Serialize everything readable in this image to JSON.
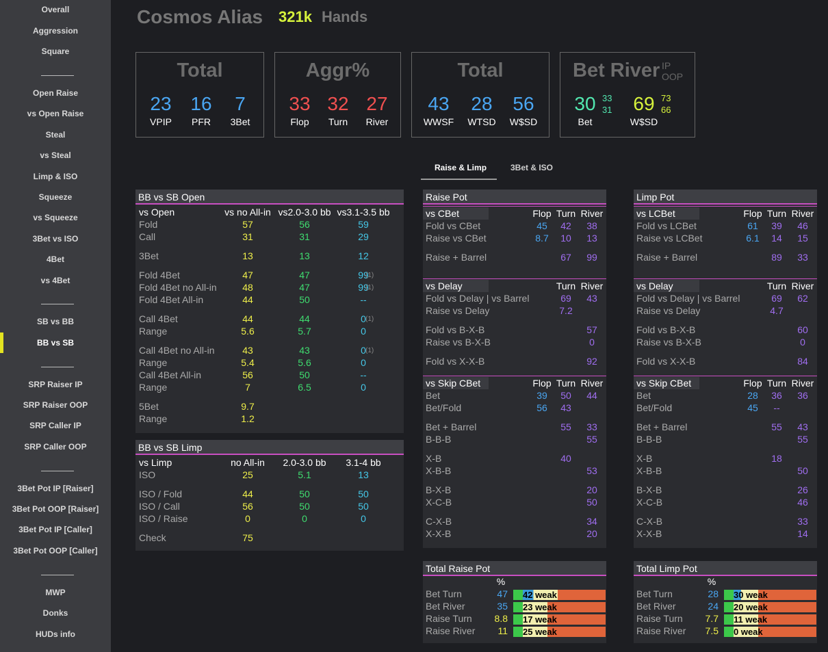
{
  "sidebar": {
    "items": [
      "Overall",
      "Aggression",
      "Square",
      "Open Raise",
      "vs Open Raise",
      "Steal",
      "vs Steal",
      "Limp & ISO",
      "Squeeze",
      "vs Squeeze",
      "3Bet vs ISO",
      "4Bet",
      "vs 4Bet",
      "SB vs BB",
      "BB vs SB",
      "SRP Raiser IP",
      "SRP Raiser OOP",
      "SRP Caller IP",
      "SRP Caller OOP",
      "3Bet Pot IP [Raiser]",
      "3Bet Pot OOP [Raiser]",
      "3Bet Pot IP [Caller]",
      "3Bet Pot OOP [Caller]",
      "MWP",
      "Donks",
      "HUDs info"
    ],
    "active": "BB vs SB"
  },
  "header": {
    "player": "Cosmos Alias",
    "hands_count": "321k",
    "hands_label": "Hands"
  },
  "cards": {
    "total1": {
      "title": "Total",
      "vpip": "23",
      "vpip_l": "VPIP",
      "pfr": "16",
      "pfr_l": "PFR",
      "tb": "7",
      "tb_l": "3Bet"
    },
    "aggr": {
      "title": "Aggr%",
      "flop": "33",
      "flop_l": "Flop",
      "turn": "32",
      "turn_l": "Turn",
      "river": "27",
      "river_l": "River"
    },
    "total2": {
      "title": "Total",
      "wwsf": "43",
      "wwsf_l": "WWSF",
      "wtsd": "28",
      "wtsd_l": "WTSD",
      "wsd": "56",
      "wsd_l": "W$SD"
    },
    "betriver": {
      "title": "Bet River",
      "ip": "IP",
      "oop": "OOP",
      "bet": "30",
      "bet_ip": "33",
      "bet_oop": "31",
      "bet_l": "Bet",
      "wsd": "69",
      "wsd_ip": "73",
      "wsd_oop": "66",
      "wsd_l": "W$SD"
    }
  },
  "tabs": [
    "Raise & Limp",
    "3Bet & ISO"
  ],
  "bbsb_open": {
    "title": "BB vs SB Open",
    "head": [
      "vs Open",
      "vs no All-in",
      "vs2.0-3.0 bb",
      "vs3.1-3.5 bb"
    ],
    "fold": [
      "Fold",
      "57",
      "56",
      "59"
    ],
    "call": [
      "Call",
      "31",
      "31",
      "29"
    ],
    "threebet": [
      "3Bet",
      "13",
      "13",
      "12"
    ],
    "f4": [
      "Fold 4Bet",
      "47",
      "47",
      "99",
      "(1)"
    ],
    "f4na": [
      "Fold 4Bet no All-in",
      "48",
      "47",
      "99",
      "(1)"
    ],
    "f4a": [
      "Fold 4Bet All-in",
      "44",
      "50",
      "--"
    ],
    "c4": [
      "Call 4Bet",
      "44",
      "44",
      "0",
      "(1)"
    ],
    "c4r": [
      "Range",
      "5.6",
      "5.7",
      "0"
    ],
    "c4na": [
      "Call 4Bet no All-in",
      "43",
      "43",
      "0",
      "(1)"
    ],
    "c4nar": [
      "Range",
      "5.4",
      "5.6",
      "0"
    ],
    "c4a": [
      "Call 4Bet All-in",
      "56",
      "50",
      "--"
    ],
    "c4ar": [
      "Range",
      "7",
      "6.5",
      "0"
    ],
    "b5": [
      "5Bet",
      "9.7"
    ],
    "b5r": [
      "Range",
      "1.2"
    ]
  },
  "bbsb_limp": {
    "title": "BB vs SB Limp",
    "head": [
      "vs Limp",
      "no All-in",
      "2.0-3.0 bb",
      "3.1-4 bb"
    ],
    "iso": [
      "ISO",
      "25",
      "5.1",
      "13"
    ],
    "isof": [
      "ISO / Fold",
      "44",
      "50",
      "50"
    ],
    "isoc": [
      "ISO / Call",
      "56",
      "50",
      "50"
    ],
    "isor": [
      "ISO / Raise",
      "0",
      "0",
      "0"
    ],
    "check": [
      "Check",
      "75"
    ]
  },
  "raise_pot": {
    "title": "Raise Pot",
    "cbet_head": [
      "vs CBet",
      "Flop",
      "Turn",
      "River"
    ],
    "fcb": [
      "Fold vs CBet",
      "45",
      "42",
      "38"
    ],
    "rcb": [
      "Raise vs CBet",
      "8.7",
      "10",
      "13"
    ],
    "rb": [
      "Raise + Barrel",
      "67",
      "99"
    ],
    "delay_head": [
      "vs Delay",
      "Turn",
      "River"
    ],
    "fd": [
      "Fold vs Delay | vs Barrel",
      "69",
      "43"
    ],
    "rd": [
      "Raise vs Delay",
      "7.2"
    ],
    "fbxb": [
      "Fold vs B-X-B",
      "57"
    ],
    "rbxb": [
      "Raise vs B-X-B",
      "0"
    ],
    "fxxb": [
      "Fold vs X-X-B",
      "92"
    ],
    "skip_head": [
      "vs Skip CBet",
      "Flop",
      "Turn",
      "River"
    ],
    "bet": [
      "Bet",
      "39",
      "50",
      "44"
    ],
    "betfold": [
      "Bet/Fold",
      "56",
      "43"
    ],
    "betbarrel": [
      "Bet + Barrel",
      "55",
      "33"
    ],
    "bbb": [
      "B-B-B",
      "55"
    ],
    "xb": [
      "X-B",
      "40"
    ],
    "xbb": [
      "X-B-B",
      "53"
    ],
    "bxb": [
      "B-X-B",
      "20"
    ],
    "xcxb": [
      "X-C-B",
      "50"
    ],
    "cxb": [
      "C-X-B",
      "34"
    ],
    "xxb": [
      "X-X-B",
      "20"
    ]
  },
  "limp_pot": {
    "title": "Limp Pot",
    "cbet_head": [
      "vs LCBet",
      "Flop",
      "Turn",
      "River"
    ],
    "fcb": [
      "Fold vs LCBet",
      "61",
      "39",
      "46"
    ],
    "rcb": [
      "Raise vs LCBet",
      "6.1",
      "14",
      "15"
    ],
    "rb": [
      "Raise + Barrel",
      "89",
      "33"
    ],
    "delay_head": [
      "vs Delay",
      "Turn",
      "River"
    ],
    "fd": [
      "Fold vs Delay | vs Barrel",
      "69",
      "62"
    ],
    "rd": [
      "Raise vs Delay",
      "4.7"
    ],
    "fbxb": [
      "Fold vs B-X-B",
      "60"
    ],
    "rbxb": [
      "Raise vs B-X-B",
      "0"
    ],
    "fxxb": [
      "Fold vs X-X-B",
      "84"
    ],
    "skip_head": [
      "vs Skip CBet",
      "Flop",
      "Turn",
      "River"
    ],
    "bet": [
      "Bet",
      "28",
      "36",
      "36"
    ],
    "betfold": [
      "Bet/Fold",
      "45",
      "--"
    ],
    "betbarrel": [
      "Bet + Barrel",
      "55",
      "43"
    ],
    "bbb": [
      "B-B-B",
      "55"
    ],
    "xb": [
      "X-B",
      "18"
    ],
    "xbb": [
      "X-B-B",
      "50"
    ],
    "bxb": [
      "B-X-B",
      "26"
    ],
    "xcxb": [
      "X-C-B",
      "46"
    ],
    "cxb": [
      "C-X-B",
      "33"
    ],
    "xxb": [
      "X-X-B",
      "14"
    ]
  },
  "total_raise": {
    "title": "Total Raise Pot",
    "pct": "%",
    "rows": [
      {
        "label": "Bet Turn",
        "value": "47",
        "weak": "42 weak",
        "weak_pct": 42
      },
      {
        "label": "Bet River",
        "value": "35",
        "weak": "23 weak",
        "weak_pct": 23
      },
      {
        "label": "Raise Turn",
        "value": "8.8",
        "weak": "17 weak",
        "weak_pct": 17
      },
      {
        "label": "Raise River",
        "value": "11",
        "weak": "25 weak",
        "weak_pct": 25
      }
    ]
  },
  "total_limp": {
    "title": "Total Limp Pot",
    "pct": "%",
    "rows": [
      {
        "label": "Bet Turn",
        "value": "28",
        "weak": "30 weak",
        "weak_pct": 30
      },
      {
        "label": "Bet River",
        "value": "24",
        "weak": "20 weak",
        "weak_pct": 20
      },
      {
        "label": "Raise Turn",
        "value": "7.7",
        "weak": "11 weak",
        "weak_pct": 11
      },
      {
        "label": "Raise River",
        "value": "7.5",
        "weak": "0 weak",
        "weak_pct": 0
      }
    ]
  }
}
